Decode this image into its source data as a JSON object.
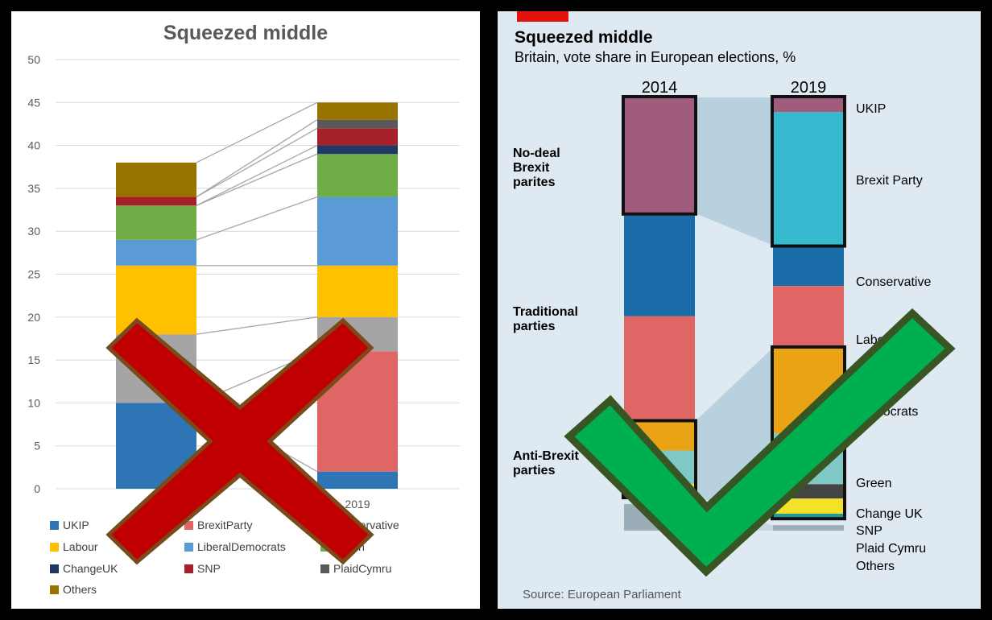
{
  "chart_data": [
    {
      "type": "bar",
      "stacked": true,
      "title": "Squeezed middle",
      "categories": [
        "2014",
        "2019"
      ],
      "ylim": [
        0,
        50
      ],
      "yticks": [
        0,
        5,
        10,
        15,
        20,
        25,
        30,
        35,
        40,
        45,
        50
      ],
      "grid": true,
      "legend_position": "bottom",
      "series": [
        {
          "name": "UKIP",
          "color": "#2e75b6",
          "values": [
            10,
            2
          ]
        },
        {
          "name": "BrexitParty",
          "color": "#e06666",
          "values": [
            0,
            14
          ]
        },
        {
          "name": "Conservative",
          "color": "#a5a5a5",
          "values": [
            8,
            4
          ]
        },
        {
          "name": "Labour",
          "color": "#ffc000",
          "values": [
            8,
            6
          ]
        },
        {
          "name": "LiberalDemocrats",
          "color": "#5b9bd5",
          "values": [
            3,
            8
          ]
        },
        {
          "name": "Green",
          "color": "#70ad47",
          "values": [
            4,
            5
          ]
        },
        {
          "name": "ChangeUK",
          "color": "#1f3864",
          "values": [
            0,
            1
          ]
        },
        {
          "name": "SNP",
          "color": "#a5202a",
          "values": [
            1,
            2
          ]
        },
        {
          "name": "PlaidCymru",
          "color": "#595959",
          "values": [
            0,
            1
          ]
        },
        {
          "name": "Others",
          "color": "#997300",
          "values": [
            4,
            2
          ]
        }
      ]
    },
    {
      "type": "bar",
      "stacked": true,
      "title": "Squeezed middle",
      "subtitle": "Britain, vote share in European elections, %",
      "categories": [
        "2014",
        "2019"
      ],
      "source": "Source: European Parliament",
      "series": [
        {
          "name": "UKIP",
          "color": "#a05c7b",
          "values": [
            27.5,
            3.5
          ]
        },
        {
          "name": "Brexit Party",
          "color": "#36bacf",
          "values": [
            0,
            31.6
          ]
        },
        {
          "name": "Conservative",
          "color": "#1a6ca8",
          "values": [
            23.9,
            9.1
          ]
        },
        {
          "name": "Labour",
          "color": "#e06666",
          "values": [
            24.4,
            14.1
          ]
        },
        {
          "name": "Liberal Democrats",
          "color": "#eba316",
          "values": [
            6.9,
            20.3
          ]
        },
        {
          "name": "Green",
          "color": "#80c8c6",
          "values": [
            7.9,
            12.1
          ]
        },
        {
          "name": "Change UK",
          "color": "#444444",
          "values": [
            0,
            3.4
          ]
        },
        {
          "name": "SNP",
          "color": "#f3e12a",
          "values": [
            2.4,
            3.6
          ]
        },
        {
          "name": "Plaid Cymru",
          "color": "#21989a",
          "values": [
            0.7,
            1.0
          ]
        },
        {
          "name": "Others",
          "color": "#9aadb8",
          "values": [
            6.3,
            1.3
          ]
        }
      ],
      "groups": [
        {
          "label": [
            "No-deal",
            "Brexit",
            "parites"
          ],
          "members": [
            "UKIP",
            "Brexit Party"
          ]
        },
        {
          "label": [
            "Traditional",
            "parties"
          ],
          "members": [
            "Conservative",
            "Labour"
          ]
        },
        {
          "label": [
            "Anti-Brexit",
            "parties"
          ],
          "members": [
            "Liberal Democrats",
            "Green",
            "Change UK",
            "SNP",
            "Plaid Cymru"
          ]
        }
      ],
      "right_labels": [
        "UKIP",
        "Brexit Party",
        "Conservative",
        "Labour",
        "Liberal Democrats",
        "Green",
        "Change UK",
        "SNP",
        "Plaid Cymru",
        "Others"
      ]
    }
  ],
  "overlays": {
    "cross_mark": {
      "color": "#c00000",
      "outline": "#7a4a1a"
    },
    "check_mark": {
      "color": "#00b050",
      "outline": "#375623"
    }
  }
}
